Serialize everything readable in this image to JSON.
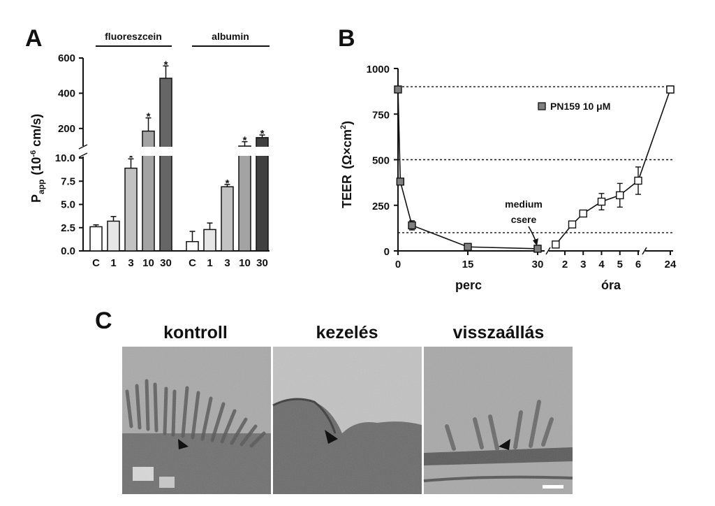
{
  "figure": {
    "panel_labels": [
      "A",
      "B",
      "C"
    ]
  },
  "chart_data": [
    {
      "panel": "A",
      "type": "bar",
      "title": "",
      "groups": [
        {
          "name": "fluoreszcein",
          "categories": [
            "C",
            "1",
            "3",
            "10",
            "30"
          ],
          "values": [
            2.6,
            3.2,
            8.9,
            185,
            485
          ],
          "errors": [
            0.2,
            0.5,
            1.0,
            75,
            70
          ],
          "significant": [
            false,
            false,
            true,
            true,
            true
          ],
          "colors": [
            "#ffffff",
            "#e6e6e6",
            "#c2c2c2",
            "#a3a3a3",
            "#666666"
          ]
        },
        {
          "name": "albumin",
          "categories": [
            "C",
            "1",
            "3",
            "10",
            "30"
          ],
          "values": [
            1.0,
            2.3,
            6.9,
            85,
            148
          ],
          "errors": [
            1.1,
            0.7,
            0.25,
            40,
            15
          ],
          "significant": [
            false,
            false,
            true,
            true,
            true
          ],
          "colors": [
            "#ffffff",
            "#e6e6e6",
            "#c2c2c2",
            "#a3a3a3",
            "#404040"
          ]
        }
      ],
      "ylabel_main": "P",
      "ylabel_sub": "app",
      "ylabel_unit": "(10",
      "ylabel_exp": "-6",
      "ylabel_tail": " cm/s)",
      "y_lower": {
        "range": [
          0,
          10
        ],
        "ticks": [
          "0.0",
          "2.5",
          "5.0",
          "7.5",
          "10.0"
        ]
      },
      "y_upper": {
        "range": [
          0,
          600
        ],
        "ticks": [
          "200",
          "400",
          "600"
        ]
      },
      "axis_break": true,
      "marker": "*"
    },
    {
      "panel": "B",
      "type": "line",
      "ylabel": "TEER",
      "yunit_open": "(Ω×cm",
      "yunit_exp": "2",
      "yunit_close": ")",
      "ylim": [
        0,
        1000
      ],
      "yticks": [
        "0",
        "250",
        "500",
        "750",
        "1000"
      ],
      "x_segments": [
        {
          "label": "perc",
          "ticks": [
            "0",
            "15",
            "30"
          ],
          "range": [
            0,
            30
          ]
        },
        {
          "label": "óra",
          "ticks": [
            "2",
            "3",
            "4",
            "5",
            "6"
          ],
          "range": [
            1.3,
            6
          ]
        },
        {
          "label": "",
          "ticks": [
            "24"
          ],
          "range": [
            24,
            24
          ]
        }
      ],
      "series": [
        {
          "name": "PN159 10 μM",
          "marker": "square-grey",
          "points": [
            {
              "seg": 0,
              "x": 0,
              "y": 885,
              "err": 0
            },
            {
              "seg": 0,
              "x": 0.5,
              "y": 380,
              "err": 0
            },
            {
              "seg": 0,
              "x": 3,
              "y": 140,
              "err": 25
            },
            {
              "seg": 0,
              "x": 15,
              "y": 22,
              "err": 0
            },
            {
              "seg": 0,
              "x": 30,
              "y": 12,
              "err": 0
            }
          ]
        },
        {
          "name": "",
          "marker": "square-open",
          "points": [
            {
              "seg": 1,
              "x": 1.5,
              "y": 35,
              "err": 0
            },
            {
              "seg": 1,
              "x": 2.4,
              "y": 145,
              "err": 0
            },
            {
              "seg": 1,
              "x": 3,
              "y": 205,
              "err": 0
            },
            {
              "seg": 1,
              "x": 4,
              "y": 270,
              "err": 45
            },
            {
              "seg": 1,
              "x": 5,
              "y": 305,
              "err": 65
            },
            {
              "seg": 1,
              "x": 6,
              "y": 385,
              "err": 75
            },
            {
              "seg": 2,
              "x": 22,
              "y": 885,
              "err": 0
            },
            {
              "seg": 2,
              "x": 24,
              "y": 885,
              "err": 0
            }
          ]
        }
      ],
      "reference_lines": [
        900,
        500,
        100
      ],
      "annotation": {
        "line1": "medium",
        "line2": "csere"
      },
      "legend": {
        "label_text": "PN159 10 ",
        "label_unit": "μM",
        "position": "top-right"
      }
    }
  ],
  "panel_c": {
    "captions": [
      "kontroll",
      "kezelés",
      "visszaállás"
    ],
    "images": [
      "electron-micrograph-kontroll",
      "electron-micrograph-kezeles",
      "electron-micrograph-visszaallas"
    ]
  }
}
